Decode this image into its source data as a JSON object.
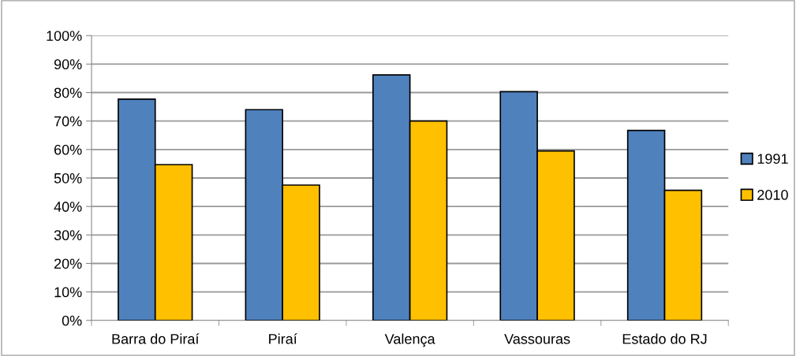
{
  "chart_data": {
    "type": "bar",
    "categories": [
      "Barra do Piraí",
      "Piraí",
      "Valença",
      "Vassouras",
      "Estado do RJ"
    ],
    "series": [
      {
        "name": "1991",
        "color": "#4f81bd",
        "values": [
          77.7,
          74.0,
          86.2,
          80.3,
          66.7
        ]
      },
      {
        "name": "2010",
        "color": "#ffc000",
        "values": [
          54.7,
          47.5,
          70.0,
          59.5,
          45.7
        ]
      }
    ],
    "ylim": [
      0,
      100
    ],
    "yticks": [
      {
        "value": 0,
        "label": "0%"
      },
      {
        "value": 10,
        "label": "10%"
      },
      {
        "value": 20,
        "label": "20%"
      },
      {
        "value": 30,
        "label": "30%"
      },
      {
        "value": 40,
        "label": "40%"
      },
      {
        "value": 50,
        "label": "50%"
      },
      {
        "value": 60,
        "label": "60%"
      },
      {
        "value": 70,
        "label": "70%"
      },
      {
        "value": 80,
        "label": "80%"
      },
      {
        "value": 90,
        "label": "90%"
      },
      {
        "value": 100,
        "label": "100%"
      }
    ],
    "grid": "y",
    "legend": "right"
  }
}
